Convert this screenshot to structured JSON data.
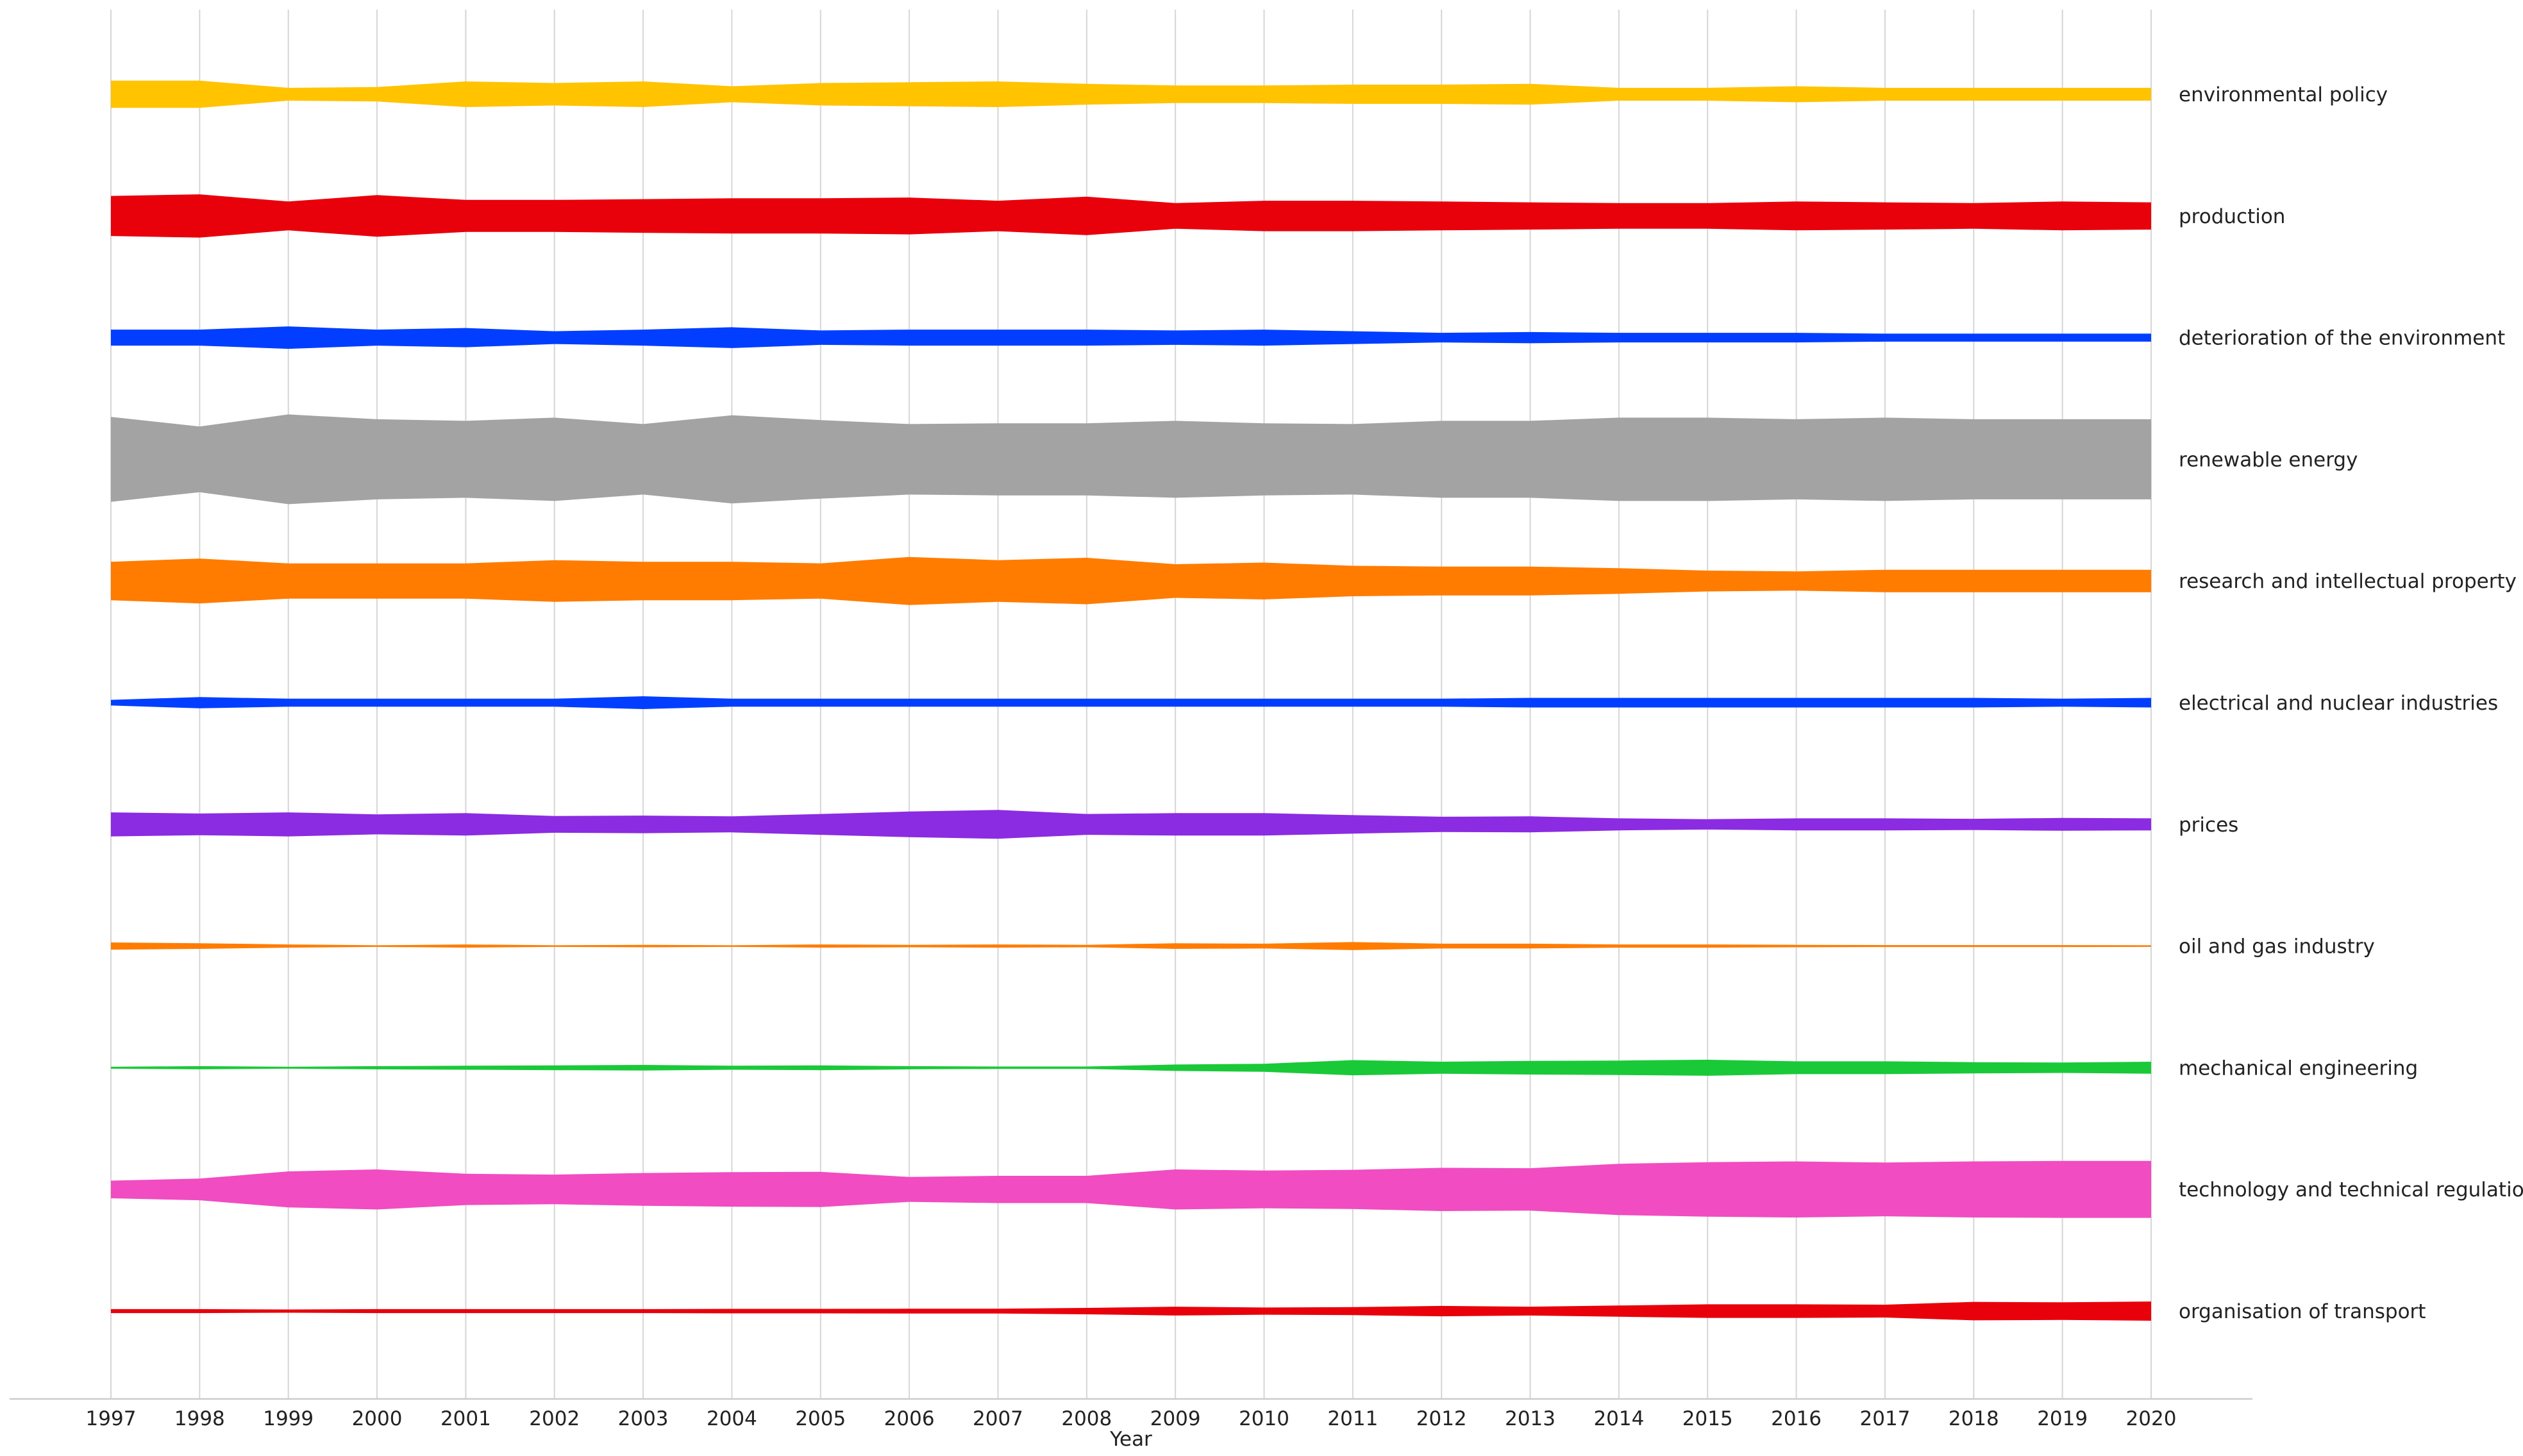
{
  "chart_data": {
    "type": "area",
    "xlabel": "Year",
    "x": [
      1997,
      1998,
      1999,
      2000,
      2001,
      2002,
      2003,
      2004,
      2005,
      2006,
      2007,
      2008,
      2009,
      2010,
      2011,
      2012,
      2013,
      2014,
      2015,
      2016,
      2017,
      2018,
      2019,
      2020
    ],
    "grid": "vertical",
    "legend": "right, labels beside each stream",
    "series": [
      {
        "name": "environmental policy",
        "color": "#ffc300",
        "values": [
          1.7,
          1.7,
          0.8,
          0.9,
          1.6,
          1.4,
          1.6,
          1.0,
          1.4,
          1.5,
          1.6,
          1.3,
          1.1,
          1.1,
          1.2,
          1.2,
          1.3,
          0.8,
          0.8,
          1.0,
          0.8,
          0.8,
          0.8,
          0.8
        ]
      },
      {
        "name": "production",
        "color": "#e8000b",
        "values": [
          2.5,
          2.7,
          1.8,
          2.6,
          2.0,
          2.0,
          2.1,
          2.2,
          2.2,
          2.3,
          1.9,
          2.4,
          1.6,
          1.9,
          1.9,
          1.8,
          1.7,
          1.6,
          1.6,
          1.8,
          1.7,
          1.6,
          1.8,
          1.7
        ]
      },
      {
        "name": "deterioration of the environment",
        "color": "#023eff",
        "values": [
          1.0,
          1.0,
          1.4,
          1.0,
          1.2,
          0.8,
          1.0,
          1.3,
          0.9,
          1.0,
          1.0,
          1.0,
          0.9,
          1.0,
          0.8,
          0.6,
          0.7,
          0.6,
          0.6,
          0.6,
          0.5,
          0.5,
          0.5,
          0.5
        ]
      },
      {
        "name": "renewable energy",
        "color": "#a3a3a3",
        "values": [
          5.3,
          4.1,
          5.6,
          5.0,
          4.8,
          5.2,
          4.4,
          5.5,
          4.9,
          4.4,
          4.5,
          4.5,
          4.8,
          4.5,
          4.4,
          4.8,
          4.8,
          5.2,
          5.2,
          5.0,
          5.2,
          5.0,
          5.0,
          5.0
        ]
      },
      {
        "name": "research and intellectual property",
        "color": "#ff7c00",
        "values": [
          2.4,
          2.8,
          2.2,
          2.2,
          2.2,
          2.6,
          2.4,
          2.4,
          2.2,
          3.0,
          2.6,
          2.9,
          2.1,
          2.3,
          1.9,
          1.8,
          1.8,
          1.6,
          1.3,
          1.2,
          1.4,
          1.4,
          1.4,
          1.4
        ]
      },
      {
        "name": "electrical and nuclear industries",
        "color": "#023eff",
        "values": [
          0.35,
          0.7,
          0.5,
          0.5,
          0.5,
          0.5,
          0.8,
          0.5,
          0.5,
          0.5,
          0.5,
          0.5,
          0.5,
          0.5,
          0.5,
          0.5,
          0.6,
          0.6,
          0.6,
          0.6,
          0.6,
          0.6,
          0.5,
          0.6
        ]
      },
      {
        "name": "prices",
        "color": "#8b2be2",
        "values": [
          1.5,
          1.35,
          1.5,
          1.25,
          1.4,
          1.05,
          1.1,
          1.0,
          1.3,
          1.6,
          1.8,
          1.3,
          1.4,
          1.4,
          1.15,
          0.95,
          1.0,
          0.75,
          0.65,
          0.75,
          0.75,
          0.7,
          0.8,
          0.75
        ]
      },
      {
        "name": "oil and gas industry",
        "color": "#ff7c00",
        "values": [
          0.45,
          0.35,
          0.2,
          0.1,
          0.2,
          0.1,
          0.15,
          0.1,
          0.2,
          0.15,
          0.2,
          0.15,
          0.35,
          0.3,
          0.5,
          0.3,
          0.3,
          0.2,
          0.2,
          0.15,
          0.12,
          0.12,
          0.12,
          0.1
        ]
      },
      {
        "name": "mechanical engineering",
        "color": "#1ac938",
        "values": [
          0.12,
          0.2,
          0.12,
          0.2,
          0.25,
          0.3,
          0.35,
          0.25,
          0.3,
          0.2,
          0.15,
          0.15,
          0.4,
          0.5,
          0.95,
          0.75,
          0.85,
          0.9,
          1.0,
          0.8,
          0.8,
          0.7,
          0.65,
          0.75
        ]
      },
      {
        "name": "technology and technical regulations",
        "color": "#f14cc1",
        "values": [
          1.1,
          1.35,
          2.25,
          2.5,
          1.95,
          1.85,
          2.05,
          2.15,
          2.2,
          1.55,
          1.7,
          1.7,
          2.5,
          2.35,
          2.45,
          2.7,
          2.65,
          3.2,
          3.4,
          3.5,
          3.35,
          3.5,
          3.55,
          3.55
        ]
      },
      {
        "name": "organisation of transport",
        "color": "#e8000b",
        "values": [
          0.25,
          0.25,
          0.2,
          0.25,
          0.25,
          0.25,
          0.25,
          0.28,
          0.28,
          0.3,
          0.3,
          0.4,
          0.55,
          0.45,
          0.5,
          0.65,
          0.55,
          0.7,
          0.85,
          0.85,
          0.8,
          1.15,
          1.1,
          1.2
        ]
      }
    ]
  }
}
